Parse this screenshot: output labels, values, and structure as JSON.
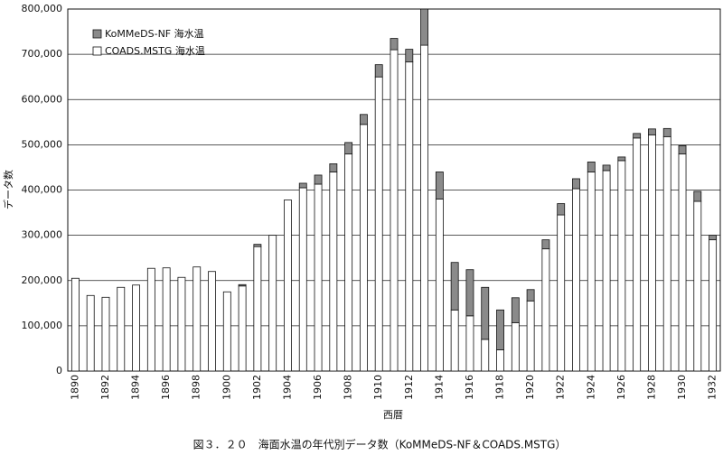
{
  "chart_data": {
    "type": "stacked-bar",
    "title": "図３．２０　海面水温の年代別データ数（KoMMeDS-NF＆COADS.MSTG）",
    "x_label": "西暦",
    "y_label": "データ数",
    "categories": [
      "1890",
      null,
      "1892",
      null,
      "1894",
      null,
      "1896",
      null,
      "1898",
      null,
      "1900",
      null,
      "1902",
      null,
      "1904",
      null,
      "1906",
      null,
      "1908",
      null,
      "1910",
      null,
      "1912",
      null,
      "1914",
      null,
      "1916",
      null,
      "1918",
      null,
      "1920",
      null,
      "1922",
      null,
      "1924",
      null,
      "1926",
      null,
      "1928",
      null,
      "1930",
      null,
      "1932"
    ],
    "series": [
      {
        "name": "COADS.MSTG 海水温",
        "color": "#ffffff",
        "values": [
          205000,
          167000,
          163000,
          185000,
          190000,
          227000,
          228000,
          207000,
          230000,
          220000,
          175000,
          188000,
          275000,
          300000,
          378000,
          405000,
          413000,
          440000,
          480000,
          545000,
          650000,
          710000,
          683000,
          720000,
          380000,
          135000,
          122000,
          70000,
          47000,
          107000,
          155000,
          270000,
          345000,
          403000,
          440000,
          443000,
          465000,
          515000,
          522000,
          518000,
          480000,
          375000,
          290000
        ]
      },
      {
        "name": "KoMMeDS-NF 海水温",
        "color": "#8a8a8a",
        "values": [
          0,
          0,
          0,
          0,
          0,
          0,
          0,
          0,
          0,
          0,
          0,
          3000,
          5000,
          0,
          0,
          10000,
          20000,
          18000,
          25000,
          22000,
          27000,
          25000,
          28000,
          80000,
          60000,
          105000,
          102000,
          115000,
          88000,
          55000,
          25000,
          20000,
          25000,
          22000,
          22000,
          12000,
          8000,
          10000,
          13000,
          18000,
          18000,
          22000,
          10000
        ]
      }
    ],
    "ylim": [
      0,
      800000
    ],
    "yticks": [
      0,
      {
        "value": 100000,
        "label": "100,000"
      },
      {
        "value": 200000,
        "label": "200,000"
      },
      {
        "value": 300000,
        "label": "300,000"
      },
      {
        "value": 400000,
        "label": "400,000"
      },
      {
        "value": 500000,
        "label": "500,000"
      },
      {
        "value": 600000,
        "label": "600,000"
      },
      {
        "value": 700000,
        "label": "700,000"
      },
      {
        "value": 800000,
        "label": "800,000"
      }
    ],
    "grid": true,
    "legend": "top-left"
  }
}
